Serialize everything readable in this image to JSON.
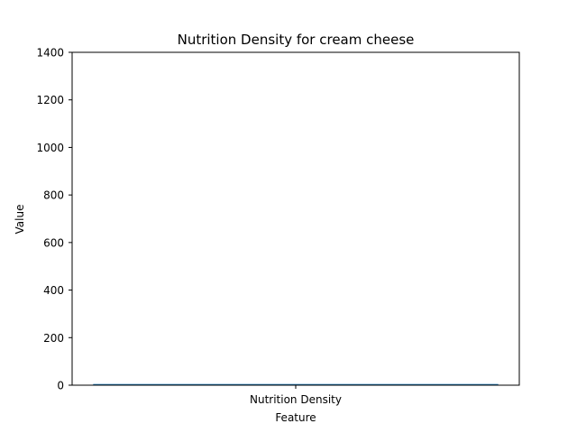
{
  "chart_data": {
    "type": "bar",
    "title": "Nutrition Density for cream cheese",
    "xlabel": "Feature",
    "ylabel": "Value",
    "categories": [
      "Nutrition Density"
    ],
    "values": [
      5
    ],
    "ylim": [
      0,
      1400
    ],
    "yticks": [
      0,
      200,
      400,
      600,
      800,
      1000,
      1200,
      1400
    ],
    "grid": false,
    "bar_color": "#1f77b4"
  }
}
